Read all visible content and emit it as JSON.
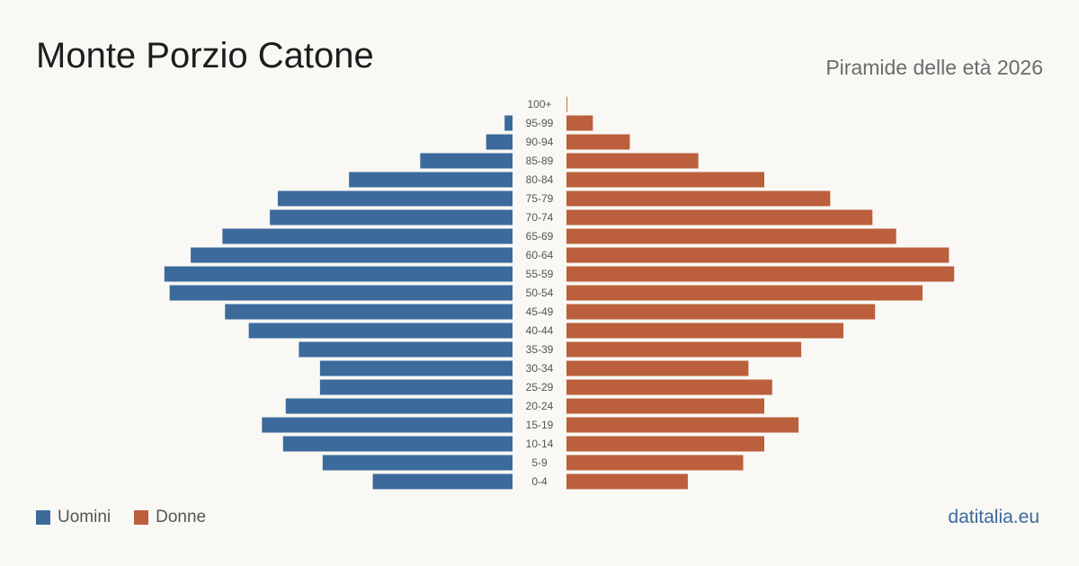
{
  "header": {
    "title": "Monte Porzio Catone",
    "subtitle": "Piramide delle età 2026"
  },
  "footer": {
    "brand": "datitalia.eu"
  },
  "legend": [
    {
      "label": "Uomini",
      "color": "#3b6a9b"
    },
    {
      "label": "Donne",
      "color": "#bb5f3d"
    }
  ],
  "chart_data": {
    "type": "bar",
    "orientation": "horizontal-pyramid",
    "categories": [
      "100+",
      "95-99",
      "90-94",
      "85-89",
      "80-84",
      "75-79",
      "70-74",
      "65-69",
      "60-64",
      "55-59",
      "50-54",
      "45-49",
      "40-44",
      "35-39",
      "30-34",
      "25-29",
      "20-24",
      "15-19",
      "10-14",
      "5-9",
      "0-4"
    ],
    "series": [
      {
        "name": "Uomini",
        "color": "#3b6a9b",
        "values": [
          0,
          3,
          10,
          35,
          62,
          89,
          92,
          110,
          122,
          132,
          130,
          109,
          100,
          81,
          73,
          73,
          86,
          95,
          87,
          72,
          53
        ]
      },
      {
        "name": "Donne",
        "color": "#bb5f3d",
        "values": [
          0.3,
          10,
          24,
          50,
          75,
          100,
          116,
          125,
          145,
          147,
          135,
          117,
          105,
          89,
          69,
          78,
          75,
          88,
          75,
          67,
          46
        ]
      }
    ],
    "xlim": [
      0,
      150
    ],
    "grid": false,
    "legend_position": "bottom-left"
  }
}
